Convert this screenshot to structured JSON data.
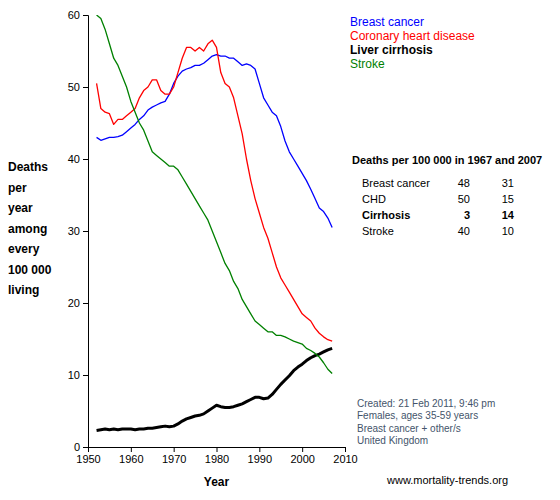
{
  "chart_data": {
    "type": "line",
    "xlabel": "Year",
    "ylabel": [
      "Deaths",
      "per",
      "year",
      "among",
      "every",
      "100 000",
      "living"
    ],
    "x": [
      1952,
      1953,
      1954,
      1955,
      1956,
      1957,
      1958,
      1959,
      1960,
      1961,
      1962,
      1963,
      1964,
      1965,
      1966,
      1967,
      1968,
      1969,
      1970,
      1971,
      1972,
      1973,
      1974,
      1975,
      1976,
      1977,
      1978,
      1979,
      1980,
      1981,
      1982,
      1983,
      1984,
      1985,
      1986,
      1987,
      1988,
      1989,
      1990,
      1991,
      1992,
      1993,
      1994,
      1995,
      1996,
      1997,
      1998,
      1999,
      2000,
      2001,
      2002,
      2003,
      2004,
      2005,
      2006,
      2007
    ],
    "series": [
      {
        "name": "Breast cancer",
        "color": "#0000ff",
        "line_style": "solid",
        "values": [
          43,
          42.6,
          42.8,
          43,
          43,
          43.1,
          43.3,
          43.8,
          44.3,
          44.8,
          45.5,
          46,
          46.8,
          47.2,
          47.5,
          47.8,
          48,
          49,
          50.5,
          51.5,
          52.2,
          52.5,
          52.7,
          53,
          53,
          53.3,
          53.8,
          54.3,
          54.5,
          54.3,
          54.3,
          54,
          54,
          53.5,
          53,
          53.2,
          53,
          52.5,
          50.5,
          48.5,
          47.5,
          46.5,
          46,
          44.5,
          42.5,
          41,
          40,
          39,
          38,
          37,
          35.8,
          34.5,
          33.2,
          32.7,
          31.8,
          30.5
        ]
      },
      {
        "name": "Coronary heart disease",
        "color": "#ff0000",
        "line_style": "solid",
        "values": [
          50.5,
          47,
          46.5,
          46.3,
          44.8,
          45.5,
          45.5,
          46,
          46.5,
          47,
          48.5,
          49.5,
          50,
          51,
          51,
          49.5,
          49,
          49,
          50,
          52,
          54,
          55.5,
          55.5,
          55,
          55.5,
          55,
          56,
          56.5,
          55.5,
          52,
          50.5,
          50,
          48.5,
          46,
          43.5,
          40,
          37,
          34.5,
          32.5,
          30.5,
          29,
          27,
          25,
          23.5,
          22.5,
          21.5,
          20.5,
          19.5,
          18.5,
          18,
          17.5,
          16.5,
          15.8,
          15.3,
          14.9,
          14.7
        ]
      },
      {
        "name": "Liver cirrhosis",
        "color": "#000000",
        "line_style": "thick",
        "values": [
          2.3,
          2.4,
          2.5,
          2.4,
          2.5,
          2.4,
          2.5,
          2.5,
          2.5,
          2.4,
          2.5,
          2.5,
          2.6,
          2.6,
          2.7,
          2.8,
          2.9,
          2.8,
          2.9,
          3.2,
          3.6,
          3.9,
          4.1,
          4.3,
          4.4,
          4.6,
          5,
          5.4,
          5.8,
          5.6,
          5.5,
          5.5,
          5.6,
          5.8,
          6,
          6.3,
          6.6,
          6.9,
          6.9,
          6.7,
          6.8,
          7.3,
          8,
          8.7,
          9.3,
          9.9,
          10.6,
          11.1,
          11.5,
          12,
          12.4,
          12.7,
          12.9,
          13.2,
          13.5,
          13.7
        ]
      },
      {
        "name": "Stroke",
        "color": "#008000",
        "line_style": "solid",
        "values": [
          60,
          59.5,
          58,
          56,
          54,
          53,
          51.5,
          50,
          48,
          46.5,
          45,
          44,
          42.5,
          41,
          40.5,
          40,
          39.5,
          39,
          39,
          38.5,
          37.5,
          36.5,
          35.5,
          34.5,
          33.5,
          32.5,
          31.5,
          30,
          28.5,
          27,
          25.5,
          24.5,
          23,
          22,
          20.5,
          19.5,
          18.5,
          17.5,
          17,
          16.5,
          16,
          16,
          15.5,
          15.5,
          15.3,
          15,
          14.7,
          14.5,
          14.3,
          13.7,
          13.4,
          13,
          12.5,
          11.7,
          10.8,
          10.2
        ]
      }
    ],
    "xlim": [
      1950,
      2010
    ],
    "xticks": [
      1950,
      1960,
      1970,
      1980,
      1990,
      2000,
      2010
    ],
    "ylim": [
      0,
      60
    ],
    "yticks": [
      0,
      10,
      20,
      30,
      40,
      50,
      60
    ],
    "grid": false,
    "legend": "top-right",
    "table": {
      "title": "Deaths per 100 000 in 1967 and 2007",
      "rows": [
        {
          "label": "Breast cancer",
          "values": [
            48,
            31
          ]
        },
        {
          "label": "CHD",
          "values": [
            50,
            15
          ]
        },
        {
          "label": "Cirrhosis",
          "values": [
            3,
            14
          ]
        },
        {
          "label": "Stroke",
          "values": [
            40,
            10
          ]
        }
      ]
    },
    "annotations": [
      "Created: 21 Feb 2011, 9:46 pm",
      "Females, ages 35-59 years",
      "Breast cancer + other/s",
      "United Kingdom"
    ],
    "source": "www.mortality-trends.org"
  }
}
